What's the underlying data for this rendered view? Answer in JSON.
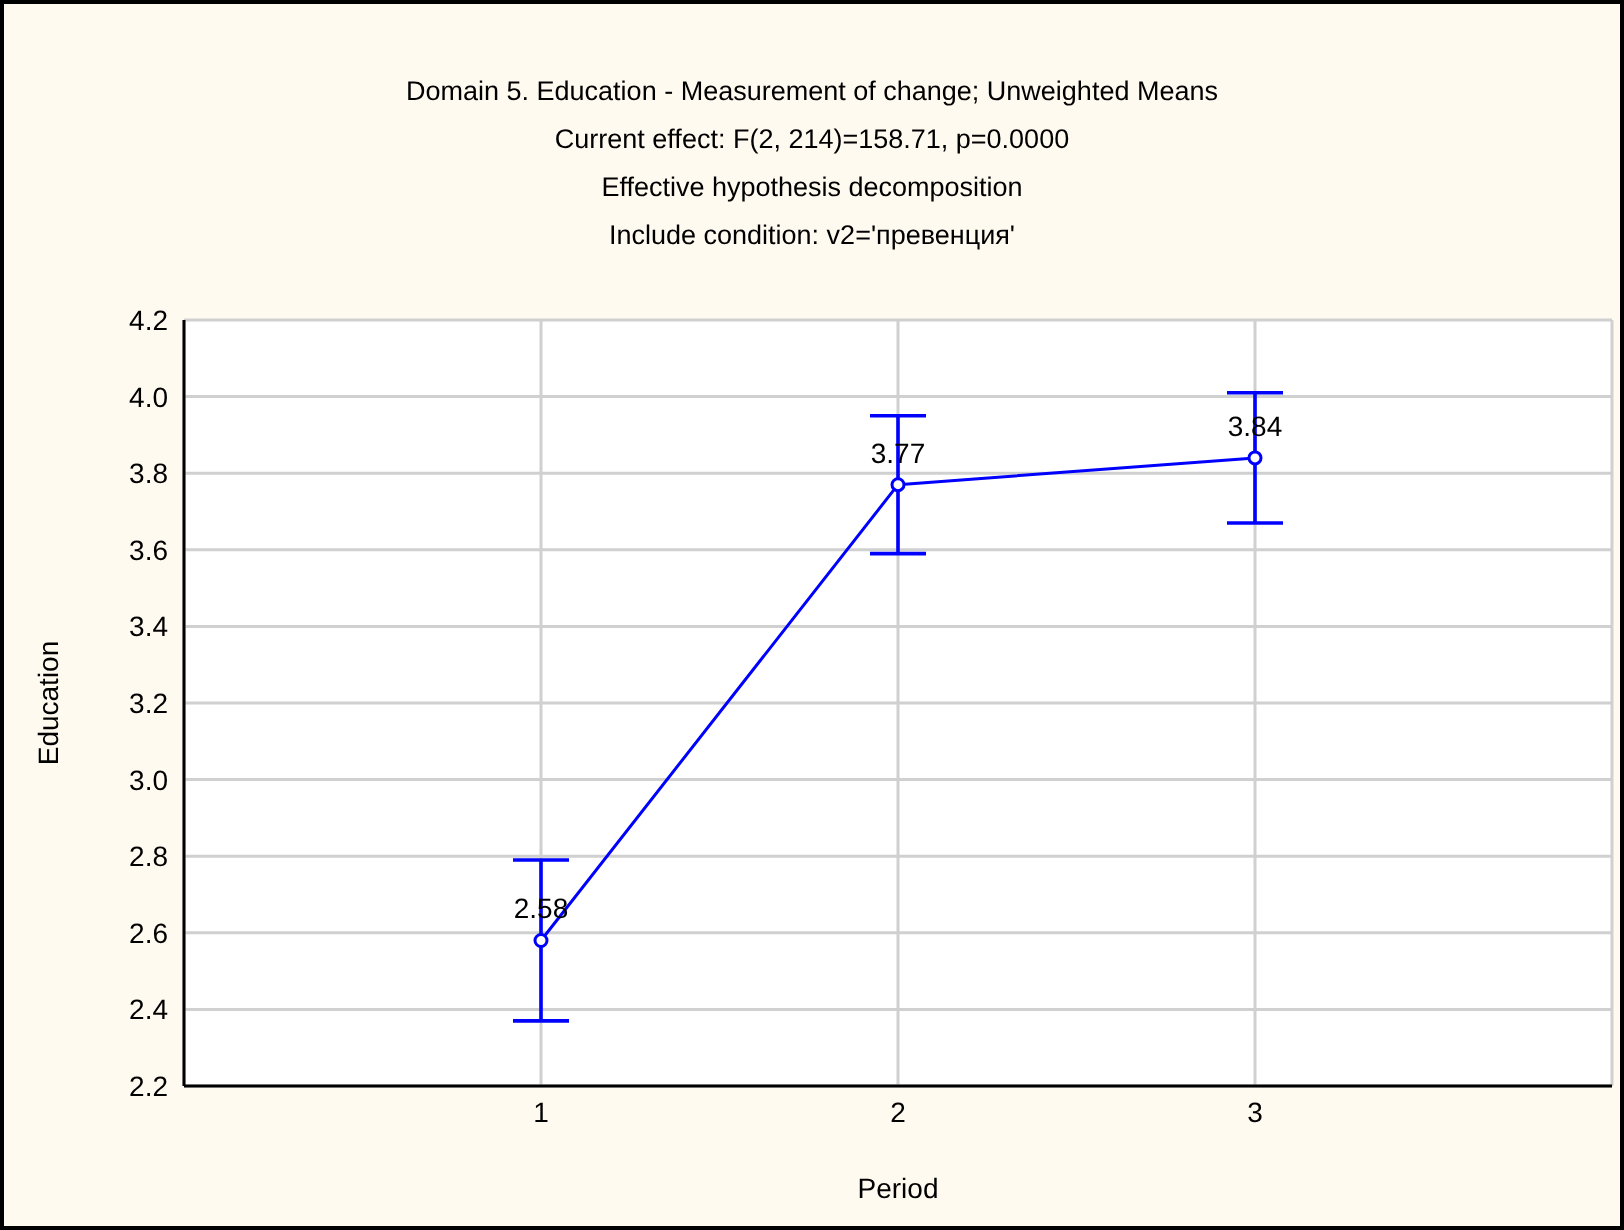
{
  "chart_data": {
    "type": "line",
    "title": "Domain 5. Education - Measurement of change; Unweighted Means",
    "subtitle": "Current effect: F(2, 214)=158.71, p=0.0000\nEffective hypothesis decomposition\nInclude condition: v2='превенция'",
    "xlabel": "Period",
    "ylabel": "Education",
    "x": [
      1,
      2,
      3
    ],
    "series": [
      {
        "color": "#0000ff",
        "values": [
          2.58,
          3.77,
          3.84
        ],
        "errors": [
          0.21,
          0.18,
          0.17
        ]
      }
    ],
    "xlim": [
      0,
      4
    ],
    "xticks": [
      1,
      2,
      3
    ],
    "ylim": [
      2.2,
      4.2
    ],
    "yticks": [
      2.2,
      2.4,
      2.6,
      2.8,
      {
        "value": 3,
        "label": "3.0"
      },
      3.2,
      3.4,
      3.6,
      3.8,
      {
        "value": 4,
        "label": "4.0"
      },
      4.2
    ],
    "grid": true,
    "marker": "circle",
    "line_style": "solid",
    "data_labels": true
  }
}
